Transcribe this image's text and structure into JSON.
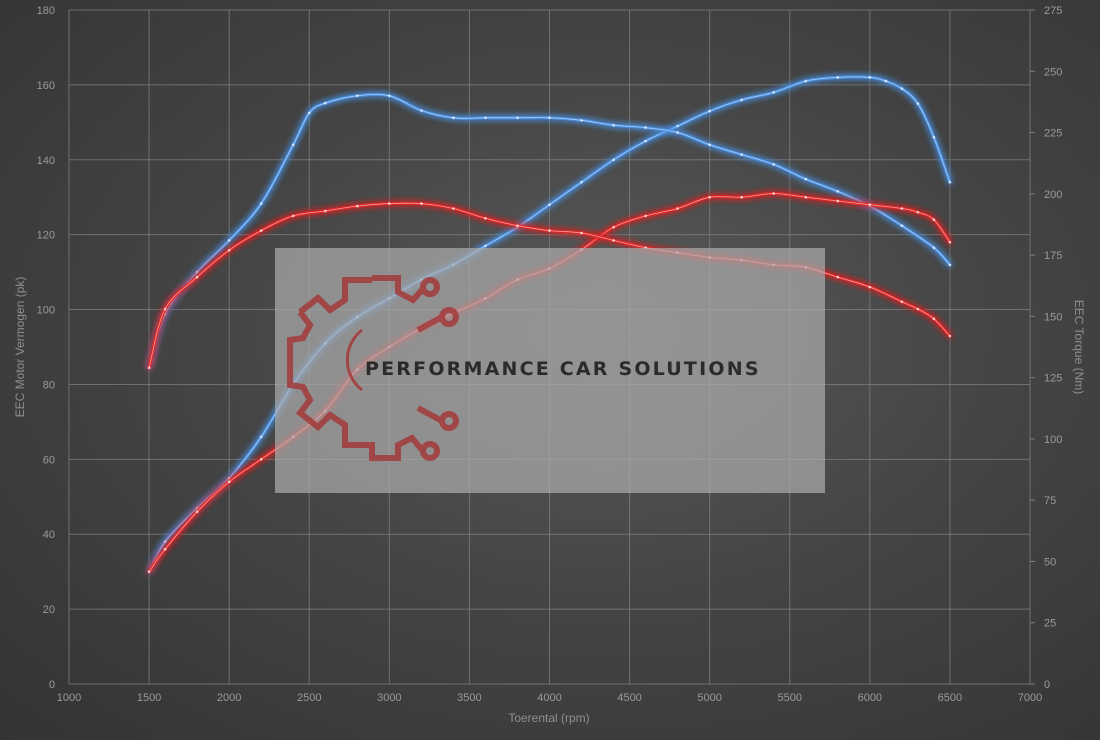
{
  "chart_data": {
    "type": "line",
    "xlabel": "Toerental (rpm)",
    "ylabel_left": "EEC Motor Vermogen (pk)",
    "ylabel_right": "EEC Torque (Nm)",
    "xlim": [
      1000,
      7000
    ],
    "x_ticks": [
      1000,
      1500,
      2000,
      2500,
      3000,
      3500,
      4000,
      4500,
      5000,
      5500,
      6000,
      6500,
      7000
    ],
    "ylim_left": [
      0,
      180
    ],
    "y_ticks_left": [
      0,
      20,
      40,
      60,
      80,
      100,
      120,
      140,
      160,
      180
    ],
    "ylim_right": [
      0,
      275
    ],
    "y_ticks_right": [
      0,
      25,
      50,
      75,
      100,
      125,
      150,
      175,
      200,
      225,
      250,
      275
    ],
    "grid": true,
    "series": [
      {
        "color": "#4a8fe0",
        "axis": "left",
        "x": [
          1500,
          1600,
          1800,
          2000,
          2200,
          2400,
          2600,
          2800,
          3000,
          3200,
          3400,
          3600,
          3800,
          4000,
          4200,
          4400,
          4600,
          4800,
          5000,
          5200,
          5400,
          5600,
          5800,
          6000,
          6100,
          6200,
          6300,
          6400,
          6500
        ],
        "y": [
          30,
          38,
          47,
          55,
          66,
          80,
          91,
          98,
          103,
          108,
          112,
          117,
          122,
          128,
          134,
          140,
          145,
          149,
          153,
          156,
          158,
          161,
          162,
          162,
          161,
          159,
          155,
          146,
          134
        ]
      },
      {
        "color": "#4a8fe0",
        "axis": "right",
        "x": [
          1500,
          1600,
          1800,
          2000,
          2200,
          2400,
          2500,
          2600,
          2800,
          3000,
          3200,
          3400,
          3600,
          3800,
          4000,
          4200,
          4400,
          4600,
          4800,
          5000,
          5200,
          5400,
          5600,
          5800,
          6000,
          6200,
          6400,
          6500
        ],
        "y": [
          129,
          151,
          168,
          181,
          196,
          220,
          233,
          237,
          240,
          240,
          234,
          231,
          231,
          231,
          231,
          230,
          228,
          227,
          225,
          220,
          216,
          212,
          206,
          201,
          195,
          187,
          178,
          171
        ]
      },
      {
        "color": "#e02525",
        "axis": "left",
        "x": [
          1500,
          1600,
          1800,
          2000,
          2200,
          2400,
          2600,
          2800,
          3000,
          3200,
          3400,
          3600,
          3800,
          4000,
          4200,
          4400,
          4600,
          4800,
          5000,
          5200,
          5400,
          5600,
          5800,
          6000,
          6200,
          6300,
          6400,
          6500
        ],
        "y": [
          30,
          36,
          46,
          54,
          60,
          66,
          73,
          84,
          90,
          95,
          99,
          103,
          108,
          111,
          116,
          122,
          125,
          127,
          130,
          130,
          131,
          130,
          129,
          128,
          127,
          126,
          124,
          118
        ]
      },
      {
        "color": "#e02525",
        "axis": "right",
        "x": [
          1500,
          1600,
          1800,
          2000,
          2200,
          2400,
          2600,
          2800,
          3000,
          3200,
          3400,
          3600,
          3800,
          4000,
          4200,
          4400,
          4600,
          4800,
          5000,
          5200,
          5400,
          5600,
          5800,
          6000,
          6200,
          6300,
          6400,
          6500
        ],
        "y": [
          129,
          153,
          166,
          177,
          185,
          191,
          193,
          195,
          196,
          196,
          194,
          190,
          187,
          185,
          184,
          181,
          178,
          176,
          174,
          173,
          171,
          170,
          166,
          162,
          156,
          153,
          149,
          142
        ]
      }
    ]
  },
  "watermark": {
    "text": "PERFORMANCE CAR SOLUTIONS",
    "logo_icon": "gear-circuit-icon",
    "logo_color": "#a33a3a"
  }
}
